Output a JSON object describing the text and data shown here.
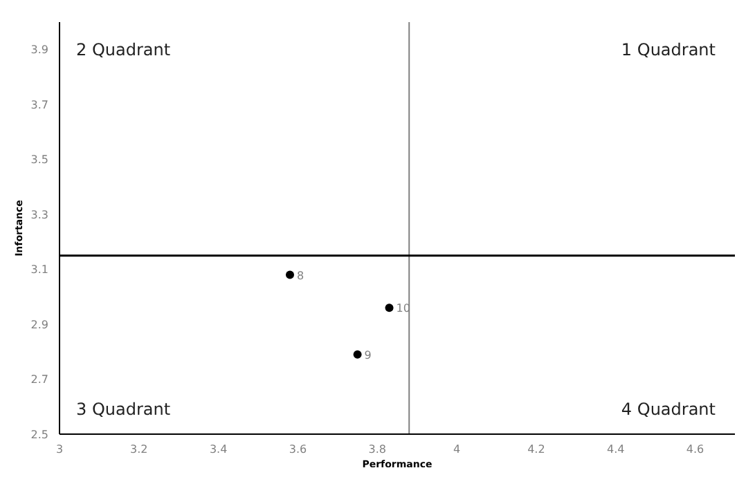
{
  "chart_data": {
    "type": "scatter",
    "xlabel": "Performance",
    "ylabel": "Infortance",
    "series": [
      {
        "color": "#000000",
        "x": [
          3.58,
          3.75,
          3.83
        ],
        "values": [
          3.08,
          2.79,
          2.96
        ]
      }
    ],
    "xlim": [
      3,
      4.7
    ],
    "xticks": [
      3,
      3.2,
      3.4,
      3.6,
      3.8,
      4,
      4.2,
      4.4,
      4.6
    ],
    "ylim": [
      2.5,
      4.0
    ],
    "yticks": [
      2.5,
      2.7,
      2.9,
      3.1,
      3.3,
      3.5,
      3.7,
      3.9
    ],
    "grid": false,
    "legend": false,
    "marker": "circle",
    "ref_lines": [
      {
        "axis": "x",
        "value": 3.88,
        "color": "#808080"
      },
      {
        "axis": "y",
        "value": 3.15,
        "color": "#000000"
      }
    ],
    "annotations": [
      "2 Quadrant",
      "1 Quadrant",
      "3 Quadrant",
      "4 Quadrant",
      {
        "text": "8",
        "x": 3.58,
        "y": 3.08
      },
      {
        "text": "9",
        "x": 3.75,
        "y": 2.79
      },
      {
        "text": "10",
        "x": 3.83,
        "y": 2.96
      }
    ]
  }
}
